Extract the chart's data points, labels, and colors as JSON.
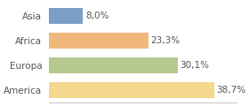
{
  "categories": [
    "Asia",
    "Africa",
    "Europa",
    "America"
  ],
  "values": [
    8.0,
    23.3,
    30.1,
    38.7
  ],
  "labels": [
    "8,0%",
    "23,3%",
    "30,1%",
    "38,7%"
  ],
  "bar_colors": [
    "#7b9ec7",
    "#f0b87a",
    "#b5c98e",
    "#f5d78e"
  ],
  "background_color": "#ffffff",
  "xlim": [
    0,
    44
  ],
  "bar_height": 0.62,
  "label_fontsize": 7.5,
  "category_fontsize": 7.5,
  "text_color": "#555555"
}
